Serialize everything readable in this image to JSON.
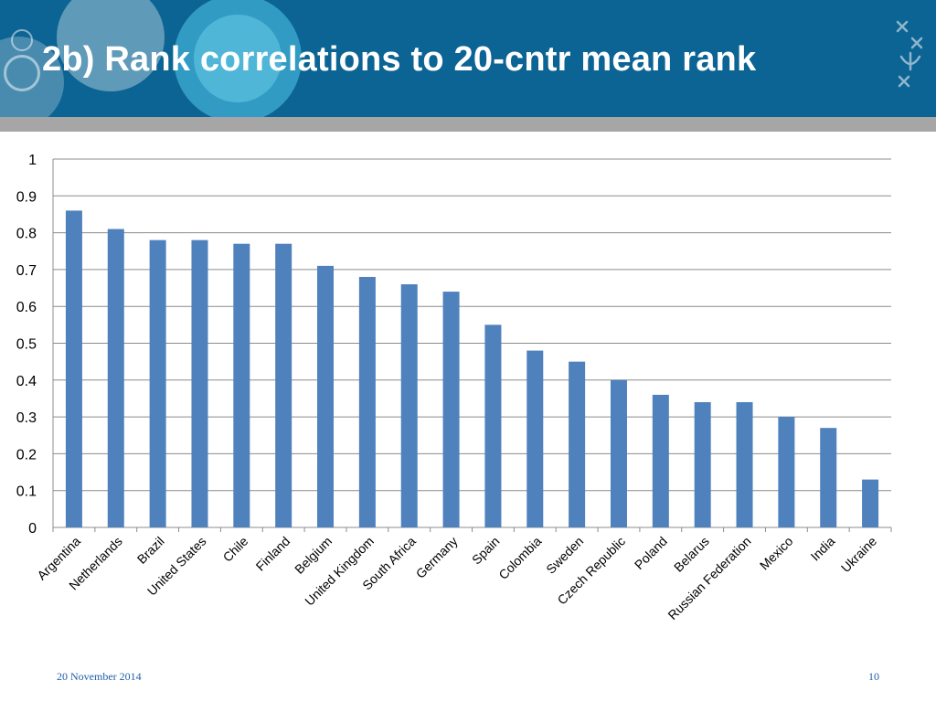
{
  "slide": {
    "title": "2b) Rank correlations to 20-cntr mean rank",
    "footer_date": "20 November 2014",
    "page_number": "10"
  },
  "colors": {
    "header": "#0c6494",
    "band": "#a6a6a6",
    "bar": "#4f81bd",
    "gridline": "#8c8c8c"
  },
  "chart_data": {
    "type": "bar",
    "categories": [
      "Argentina",
      "Netherlands",
      "Brazil",
      "United States",
      "Chile",
      "Finland",
      "Belgium",
      "United Kingdom",
      "South Africa",
      "Germany",
      "Spain",
      "Colombia",
      "Sweden",
      "Czech Republic",
      "Poland",
      "Belarus",
      "Russian Federation",
      "Mexico",
      "India",
      "Ukraine"
    ],
    "values": [
      0.86,
      0.81,
      0.78,
      0.78,
      0.77,
      0.77,
      0.71,
      0.68,
      0.66,
      0.64,
      0.55,
      0.48,
      0.45,
      0.4,
      0.36,
      0.34,
      0.34,
      0.3,
      0.27,
      0.13
    ],
    "yticks": [
      "0",
      "0.1",
      "0.2",
      "0.3",
      "0.4",
      "0.5",
      "0.6",
      "0.7",
      "0.8",
      "0.9",
      "1"
    ],
    "ylim": [
      0,
      1
    ],
    "grid": true,
    "legend": "none",
    "title": "",
    "xlabel": "",
    "ylabel": ""
  }
}
